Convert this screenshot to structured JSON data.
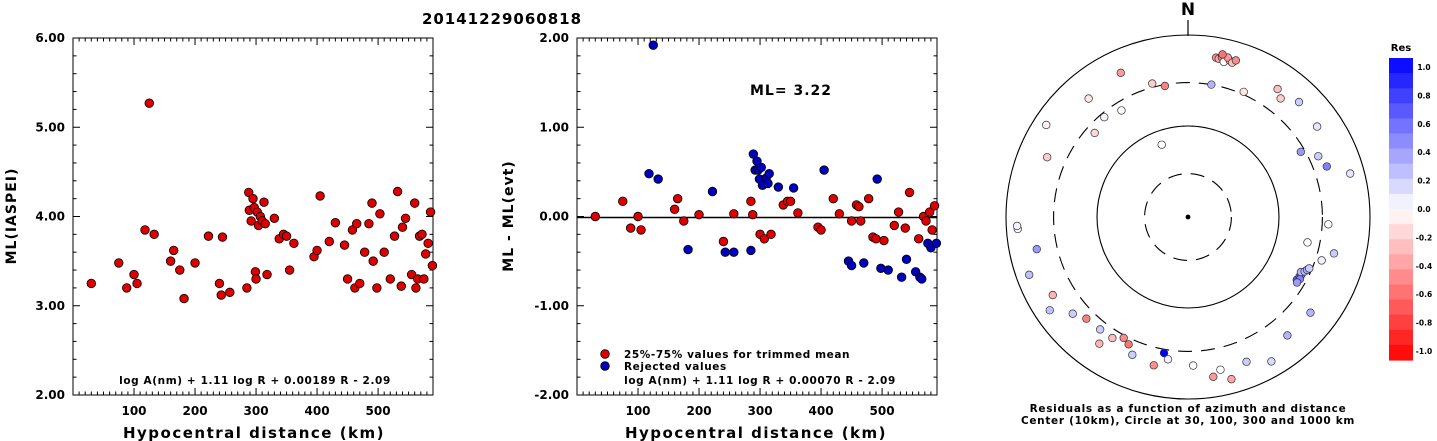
{
  "title": "20141229060818",
  "chart_data": [
    {
      "type": "scatter",
      "xlabel": "Hypocentral distance (km)",
      "ylabel": "ML(IASPEI)",
      "xlim": [
        0,
        590
      ],
      "ylim": [
        2.0,
        6.0
      ],
      "xticks": [
        "100",
        "200",
        "300",
        "400",
        "500"
      ],
      "yticks": [
        "2.00",
        "3.00",
        "4.00",
        "5.00",
        "6.00"
      ],
      "formula": "log A(nm) + 1.11 log R + 0.00189 R - 2.09",
      "series": [
        {
          "color": "#dd0000",
          "points": [
            [
              30,
              3.25
            ],
            [
              75,
              3.48
            ],
            [
              88,
              3.2
            ],
            [
              100,
              3.35
            ],
            [
              105,
              3.25
            ],
            [
              118,
              3.85
            ],
            [
              125,
              5.27
            ],
            [
              133,
              3.8
            ],
            [
              160,
              3.5
            ],
            [
              165,
              3.62
            ],
            [
              175,
              3.4
            ],
            [
              182,
              3.08
            ],
            [
              200,
              3.48
            ],
            [
              222,
              3.78
            ],
            [
              240,
              3.25
            ],
            [
              243,
              3.12
            ],
            [
              245,
              3.77
            ],
            [
              257,
              3.15
            ],
            [
              285,
              3.2
            ],
            [
              288,
              4.27
            ],
            [
              289,
              4.07
            ],
            [
              292,
              3.95
            ],
            [
              295,
              4.2
            ],
            [
              297,
              4.1
            ],
            [
              299,
              3.38
            ],
            [
              300,
              3.3
            ],
            [
              302,
              4.05
            ],
            [
              304,
              3.9
            ],
            [
              307,
              4.0
            ],
            [
              310,
              3.95
            ],
            [
              313,
              4.16
            ],
            [
              315,
              3.92
            ],
            [
              318,
              3.35
            ],
            [
              330,
              3.98
            ],
            [
              338,
              3.75
            ],
            [
              345,
              3.8
            ],
            [
              350,
              3.78
            ],
            [
              355,
              3.4
            ],
            [
              362,
              3.7
            ],
            [
              395,
              3.55
            ],
            [
              400,
              3.62
            ],
            [
              405,
              4.23
            ],
            [
              420,
              3.72
            ],
            [
              430,
              3.93
            ],
            [
              445,
              3.68
            ],
            [
              450,
              3.3
            ],
            [
              458,
              3.85
            ],
            [
              462,
              3.2
            ],
            [
              465,
              3.92
            ],
            [
              470,
              3.25
            ],
            [
              478,
              3.6
            ],
            [
              485,
              3.92
            ],
            [
              490,
              4.15
            ],
            [
              492,
              3.5
            ],
            [
              498,
              3.2
            ],
            [
              503,
              4.03
            ],
            [
              510,
              3.6
            ],
            [
              520,
              3.3
            ],
            [
              527,
              3.78
            ],
            [
              532,
              4.28
            ],
            [
              538,
              3.22
            ],
            [
              540,
              3.88
            ],
            [
              545,
              3.98
            ],
            [
              555,
              3.35
            ],
            [
              560,
              4.15
            ],
            [
              562,
              3.2
            ],
            [
              565,
              3.3
            ],
            [
              568,
              3.78
            ],
            [
              572,
              3.8
            ],
            [
              575,
              3.3
            ],
            [
              578,
              3.58
            ],
            [
              582,
              3.7
            ],
            [
              586,
              4.05
            ],
            [
              589,
              3.45
            ]
          ]
        }
      ]
    },
    {
      "type": "scatter",
      "xlabel": "Hypocentral distance (km)",
      "ylabel": "ML - ML(evt)",
      "xlim": [
        0,
        590
      ],
      "ylim": [
        -2.0,
        2.0
      ],
      "xticks": [
        "100",
        "200",
        "300",
        "400",
        "500"
      ],
      "yticks": [
        "-2.00",
        "-1.00",
        "0.00",
        "1.00",
        "2.00"
      ],
      "annotation": "ML= 3.22",
      "formula": "log A(nm) + 1.11 log R + 0.00070 R - 2.09",
      "legend_position": "bottom-left",
      "series": [
        {
          "name": "25%-75% values for trimmed mean",
          "color": "#dd0000",
          "points": [
            [
              30,
              0.0
            ],
            [
              75,
              0.17
            ],
            [
              88,
              -0.13
            ],
            [
              100,
              0.0
            ],
            [
              105,
              -0.15
            ],
            [
              160,
              0.08
            ],
            [
              165,
              0.2
            ],
            [
              175,
              -0.05
            ],
            [
              200,
              0.02
            ],
            [
              240,
              -0.28
            ],
            [
              257,
              0.03
            ],
            [
              285,
              0.17
            ],
            [
              288,
              0.02
            ],
            [
              300,
              -0.2
            ],
            [
              307,
              -0.25
            ],
            [
              318,
              -0.2
            ],
            [
              338,
              0.13
            ],
            [
              345,
              0.17
            ],
            [
              350,
              0.17
            ],
            [
              362,
              0.04
            ],
            [
              395,
              -0.12
            ],
            [
              400,
              -0.15
            ],
            [
              420,
              0.2
            ],
            [
              430,
              0.03
            ],
            [
              450,
              -0.05
            ],
            [
              458,
              0.13
            ],
            [
              462,
              0.11
            ],
            [
              465,
              -0.05
            ],
            [
              478,
              0.2
            ],
            [
              485,
              -0.23
            ],
            [
              490,
              -0.25
            ],
            [
              503,
              -0.27
            ],
            [
              520,
              -0.1
            ],
            [
              527,
              0.05
            ],
            [
              538,
              -0.13
            ],
            [
              545,
              0.27
            ],
            [
              560,
              -0.25
            ],
            [
              568,
              0.0
            ],
            [
              572,
              -0.05
            ],
            [
              578,
              0.05
            ],
            [
              582,
              -0.15
            ],
            [
              586,
              0.12
            ]
          ]
        },
        {
          "name": "Rejected values",
          "color": "#0000bb",
          "points": [
            [
              125,
              1.92
            ],
            [
              118,
              0.48
            ],
            [
              133,
              0.42
            ],
            [
              182,
              -0.37
            ],
            [
              222,
              0.28
            ],
            [
              243,
              -0.4
            ],
            [
              257,
              -0.4
            ],
            [
              285,
              -0.38
            ],
            [
              289,
              0.7
            ],
            [
              292,
              0.52
            ],
            [
              295,
              0.62
            ],
            [
              297,
              0.52
            ],
            [
              299,
              0.42
            ],
            [
              302,
              0.55
            ],
            [
              304,
              0.35
            ],
            [
              310,
              0.43
            ],
            [
              313,
              0.37
            ],
            [
              315,
              0.48
            ],
            [
              330,
              0.33
            ],
            [
              355,
              0.32
            ],
            [
              405,
              0.52
            ],
            [
              445,
              -0.5
            ],
            [
              450,
              -0.55
            ],
            [
              470,
              -0.52
            ],
            [
              492,
              0.42
            ],
            [
              498,
              -0.58
            ],
            [
              510,
              -0.6
            ],
            [
              532,
              -0.68
            ],
            [
              540,
              -0.48
            ],
            [
              555,
              -0.62
            ],
            [
              562,
              -0.68
            ],
            [
              565,
              -0.7
            ],
            [
              575,
              -0.3
            ],
            [
              580,
              -0.35
            ],
            [
              589,
              -0.3
            ]
          ]
        }
      ]
    },
    {
      "type": "scatter",
      "north_label": "N",
      "caption_line1": "Residuals as a function of azimuth and distance",
      "caption_line2": "Center (10km), Circle at 30, 100, 300 and 1000 km",
      "colorbar_title": "Res",
      "colorbar_ticks": [
        "1.0",
        "0.8",
        "0.6",
        "0.4",
        "0.2",
        "0.0",
        "-0.2",
        "-0.4",
        "-0.6",
        "-0.8",
        "-1.0"
      ],
      "distance_circles_km": [
        30,
        100,
        300,
        1000
      ],
      "stations": [
        {
          "az": 10,
          "dist": 600,
          "res": -0.45
        },
        {
          "az": 11,
          "dist": 590,
          "res": -0.35
        },
        {
          "az": 12,
          "dist": 620,
          "res": -0.5
        },
        {
          "az": 13,
          "dist": 560,
          "res": 0.0
        },
        {
          "az": 15,
          "dist": 600,
          "res": -0.3
        },
        {
          "az": 14,
          "dist": 640,
          "res": -0.4
        },
        {
          "az": 16,
          "dist": 580,
          "res": -0.25
        },
        {
          "az": 17,
          "dist": 630,
          "res": -0.45
        },
        {
          "az": 12,
          "dist": 670,
          "res": -0.55
        },
        {
          "az": 335,
          "dist": 560,
          "res": -0.4
        },
        {
          "az": 320,
          "dist": 500,
          "res": -0.1
        },
        {
          "az": 350,
          "dist": 290,
          "res": -0.5
        },
        {
          "az": 345,
          "dist": 330,
          "res": -0.2
        },
        {
          "az": 328,
          "dist": 240,
          "res": 0.0
        },
        {
          "az": 312,
          "dist": 240,
          "res": -0.15
        },
        {
          "az": 10,
          "dist": 300,
          "res": 0.3
        },
        {
          "az": 24,
          "dist": 320,
          "res": -0.1
        },
        {
          "az": 35,
          "dist": 520,
          "res": -0.25
        },
        {
          "az": 38,
          "dist": 450,
          "res": -0.2
        },
        {
          "az": 44,
          "dist": 570,
          "res": 0.2
        },
        {
          "az": 60,
          "dist": 270,
          "res": 0.4
        },
        {
          "az": 55,
          "dist": 540,
          "res": 0.1
        },
        {
          "az": 75,
          "dist": 700,
          "res": 0.1
        },
        {
          "az": 70,
          "dist": 420,
          "res": 0.5
        },
        {
          "az": 65,
          "dist": 380,
          "res": 0.2
        },
        {
          "az": 93,
          "dist": 350,
          "res": 0.0
        },
        {
          "az": 102,
          "dist": 220,
          "res": 0.0
        },
        {
          "az": 120,
          "dist": 240,
          "res": 0.65
        },
        {
          "az": 118,
          "dist": 245,
          "res": 0.6
        },
        {
          "az": 117,
          "dist": 250,
          "res": 0.55
        },
        {
          "az": 119,
          "dist": 255,
          "res": 0.5
        },
        {
          "az": 121,
          "dist": 250,
          "res": 0.4
        },
        {
          "az": 116,
          "dist": 240,
          "res": 0.3
        },
        {
          "az": 115,
          "dist": 260,
          "res": 0.25
        },
        {
          "az": 114,
          "dist": 270,
          "res": 0.35
        },
        {
          "az": 113,
          "dist": 280,
          "res": 0.2
        },
        {
          "az": 104,
          "dist": 450,
          "res": 0.2
        },
        {
          "az": 108,
          "dist": 350,
          "res": 0.05
        },
        {
          "az": 128,
          "dist": 510,
          "res": 0.3
        },
        {
          "az": 140,
          "dist": 500,
          "res": 0.3
        },
        {
          "az": 150,
          "dist": 680,
          "res": 0.15
        },
        {
          "az": 158,
          "dist": 520,
          "res": 0.2
        },
        {
          "az": 165,
          "dist": 700,
          "res": -0.35
        },
        {
          "az": 168,
          "dist": 520,
          "res": 0.0
        },
        {
          "az": 171,
          "dist": 600,
          "res": -0.4
        },
        {
          "az": 178,
          "dist": 430,
          "res": 0.0
        },
        {
          "az": 190,
          "dist": 330,
          "res": 1.0
        },
        {
          "az": 188,
          "dist": 380,
          "res": 0.05
        },
        {
          "az": 193,
          "dist": 470,
          "res": -0.45
        },
        {
          "az": 205,
          "dist": 350,
          "res": -0.55
        },
        {
          "az": 208,
          "dist": 320,
          "res": -0.45
        },
        {
          "az": 212,
          "dist": 370,
          "res": -0.25
        },
        {
          "az": 202,
          "dist": 430,
          "res": 0.2
        },
        {
          "az": 218,
          "dist": 370,
          "res": 0.2
        },
        {
          "az": 215,
          "dist": 500,
          "res": -0.3
        },
        {
          "az": 225,
          "dist": 380,
          "res": -0.5
        },
        {
          "az": 230,
          "dist": 450,
          "res": 0.2
        },
        {
          "az": 240,
          "dist": 520,
          "res": -0.3
        },
        {
          "az": 236,
          "dist": 680,
          "res": 0.25
        },
        {
          "az": 250,
          "dist": 720,
          "res": 0.25
        },
        {
          "az": 258,
          "dist": 500,
          "res": 0.4
        },
        {
          "az": 266,
          "dist": 750,
          "res": 0.0
        },
        {
          "az": 267,
          "dist": 760,
          "res": 0.05
        },
        {
          "az": 293,
          "dist": 480,
          "res": -0.2
        },
        {
          "az": 303,
          "dist": 720,
          "res": -0.05
        },
        {
          "az": 320,
          "dist": 270,
          "res": 0.05
        },
        {
          "az": 340,
          "dist": 70,
          "res": 0.0
        }
      ]
    }
  ]
}
